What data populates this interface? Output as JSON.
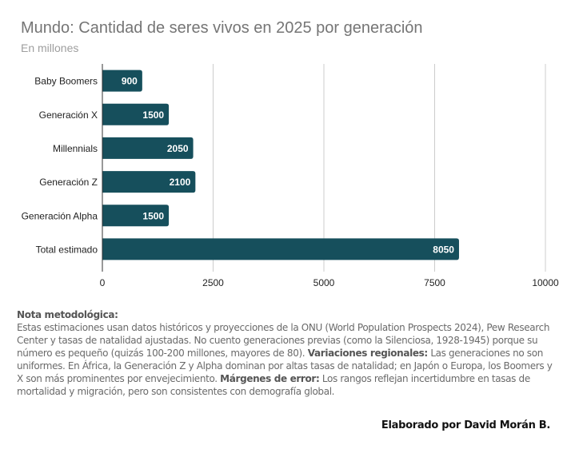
{
  "chart_data": {
    "type": "bar",
    "orientation": "horizontal",
    "title": "Mundo: Cantidad de seres vivos en 2025 por generación",
    "subtitle": "En millones",
    "categories": [
      "Baby Boomers",
      "Generación X",
      "Millennials",
      "Generación Z",
      "Generación Alpha",
      "Total estimado"
    ],
    "values": [
      900,
      1500,
      2050,
      2100,
      1500,
      8050
    ],
    "data_labels": [
      "900",
      "1500",
      "2050",
      "2100",
      "1500",
      "8050"
    ],
    "xlabel": "",
    "ylabel": "",
    "xlim": [
      0,
      10000
    ],
    "x_ticks": [
      0,
      2500,
      5000,
      7500,
      10000
    ],
    "x_tick_labels": [
      "0",
      "2500",
      "5000",
      "7500",
      "10000"
    ],
    "grid": true,
    "legend": "none",
    "bar_color": "#164f5c"
  },
  "note": {
    "heading": "Nota metodológica:",
    "text1": "Estas estimaciones usan datos históricos y proyecciones de la ONU (World Population Prospects 2024), Pew Research Center y tasas de natalidad ajustadas. No cuento generaciones previas (como la Silenciosa, 1928-1945) porque su número es pequeño (quizás 100-200 millones, mayores de 80). ",
    "bold2": "Variaciones regionales:",
    "text2": " Las generaciones no son uniformes. En África, la Generación Z y Alpha dominan por altas tasas de natalidad; en Japón o Europa, los Boomers y X son más prominentes por envejecimiento. ",
    "bold3": "Márgenes de error:",
    "text3": " Los rangos reflejan incertidumbre en tasas de mortalidad y migración, pero son consistentes con demografía global."
  },
  "credit": "Elaborado por David Morán B."
}
